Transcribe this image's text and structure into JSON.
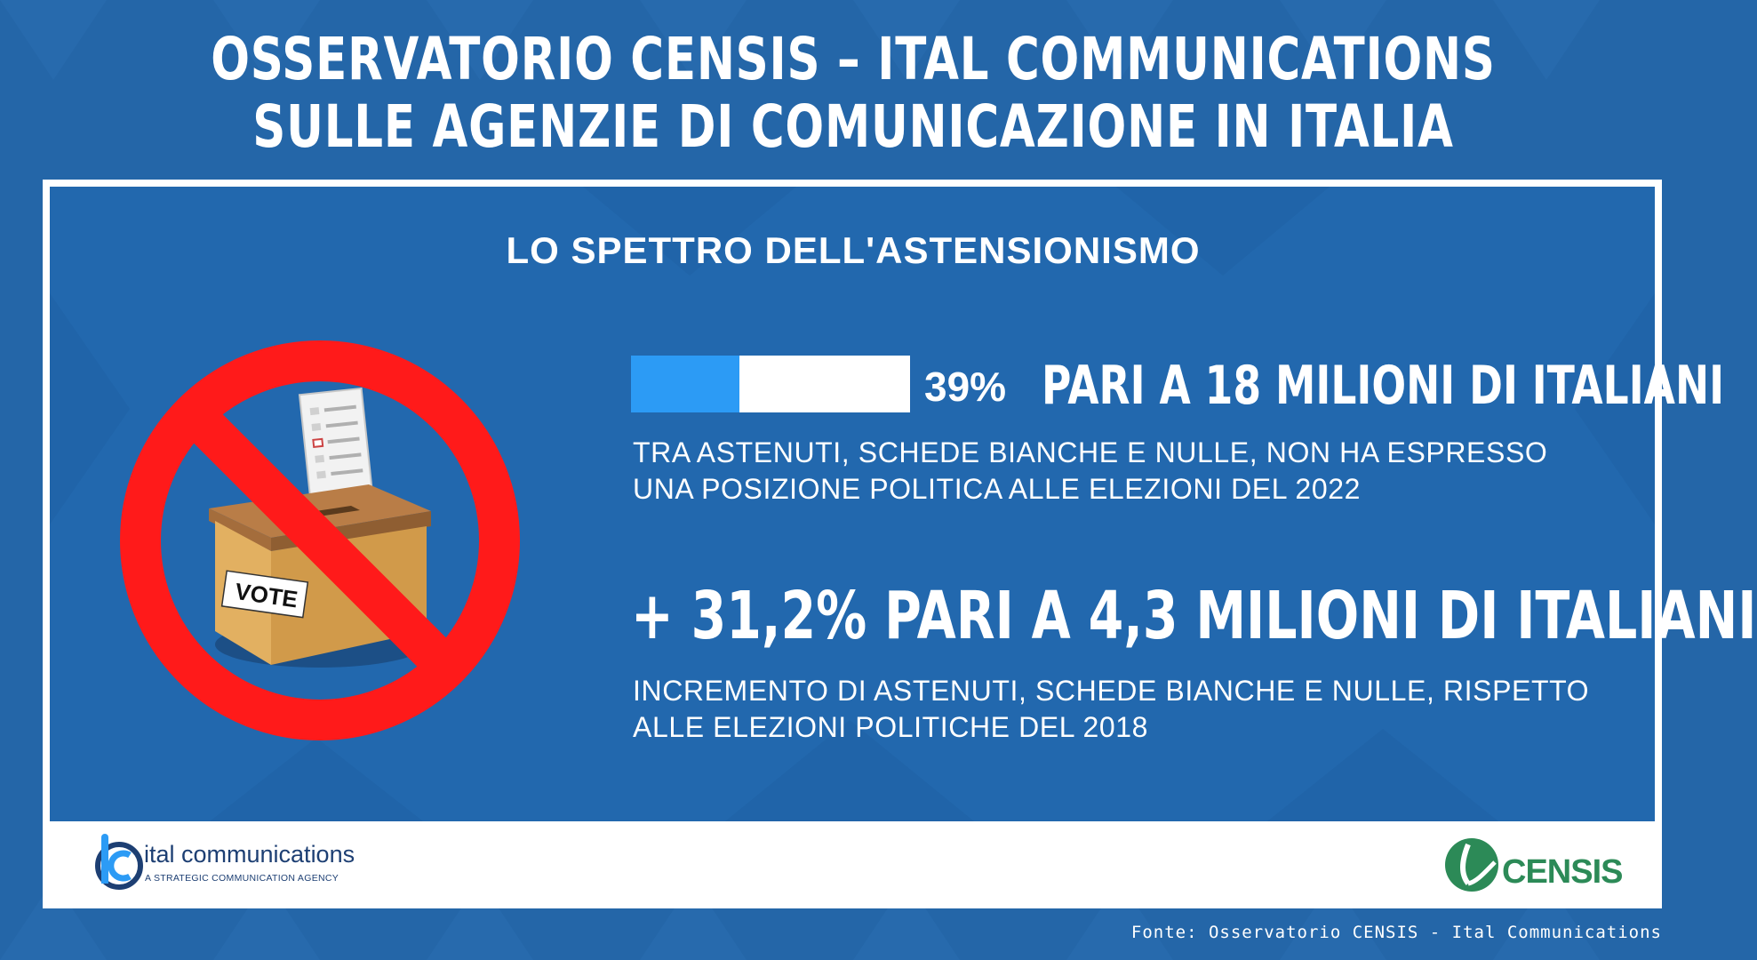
{
  "header": {
    "title_line1": "OSSERVATORIO CENSIS – ITAL COMMUNICATIONS",
    "title_line2": "SULLE AGENZIE DI COMUNICAZIONE IN ITALIA"
  },
  "panel": {
    "subtitle": "LO SPETTRO DELL'ASTENSIONISMO",
    "stat1": {
      "percent_label": "39%",
      "progress_fraction": 0.39,
      "headline": "PARI A 18 MILIONI DI ITALIANI",
      "description_line1": "TRA ASTENUTI, SCHEDE BIANCHE E NULLE, NON HA ESPRESSO",
      "description_line2": "UNA POSIZIONE POLITICA ALLE ELEZIONI DEL 2022"
    },
    "stat2": {
      "headline": "+ 31,2% PARI A 4,3 MILIONI DI ITALIANI",
      "description_line1": "INCREMENTO DI ASTENUTI, SCHEDE BIANCHE E NULLE, RISPETTO",
      "description_line2": "ALLE ELEZIONI POLITICHE DEL 2018"
    },
    "illustration": {
      "icon": "no-vote-ballot-box-icon",
      "box_label": "VOTE"
    }
  },
  "logos": {
    "ital": {
      "name": "ital communications",
      "tagline": "A STRATEGIC COMMUNICATION AGENCY"
    },
    "censis": {
      "name": "CENSIS"
    }
  },
  "footer": {
    "source": "Fonte: Osservatorio CENSIS - Ital Communications"
  },
  "colors": {
    "background": "#2466a8",
    "panel": "#2268ae",
    "progress_fill": "#2c9bf5",
    "prohibition_red": "#ff1a1a",
    "censis_green": "#2c8a57",
    "ital_navy": "#1d3f73"
  }
}
